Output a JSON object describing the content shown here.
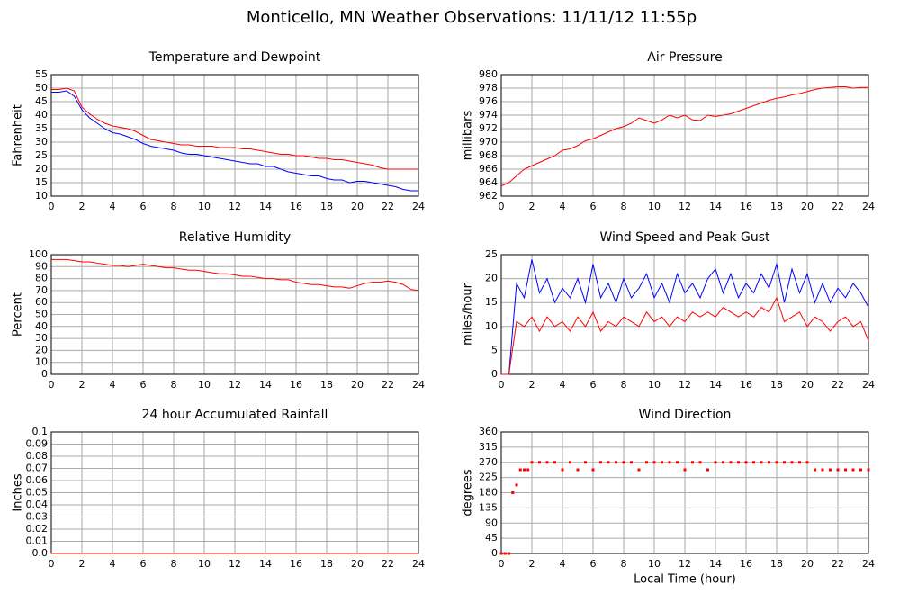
{
  "title": "Monticello, MN Weather Observations: 11/11/12 11:55p",
  "chart_data": [
    {
      "type": "line",
      "title": "Temperature and Dewpoint",
      "ylabel": "Fahrenheit",
      "grid": true,
      "x": [
        0,
        0.5,
        1,
        1.5,
        2,
        2.5,
        3,
        3.5,
        4,
        4.5,
        5,
        5.5,
        6,
        6.5,
        7,
        7.5,
        8,
        8.5,
        9,
        9.5,
        10,
        10.5,
        11,
        11.5,
        12,
        12.5,
        13,
        13.5,
        14,
        14.5,
        15,
        15.5,
        16,
        16.5,
        17,
        17.5,
        18,
        18.5,
        19,
        19.5,
        20,
        20.5,
        21,
        21.5,
        22,
        22.5,
        23,
        23.5,
        24
      ],
      "series": [
        {
          "color": "#0000ff",
          "values": [
            48.5,
            48.5,
            49,
            47,
            42,
            39,
            37,
            35,
            33.5,
            33,
            32,
            31,
            29.5,
            28.5,
            28,
            27.5,
            27,
            26,
            25.5,
            25.5,
            25,
            24.5,
            24,
            23.5,
            23,
            22.5,
            22,
            22,
            21,
            21,
            20,
            19,
            18.5,
            18,
            17.5,
            17.5,
            16.5,
            16,
            16,
            15,
            15.5,
            15.5,
            15,
            14.5,
            14,
            13.5,
            12.5,
            12,
            12
          ]
        },
        {
          "color": "#ff0000",
          "values": [
            49.5,
            49.5,
            50,
            49,
            43,
            40.5,
            38.5,
            37,
            36,
            35.5,
            35,
            34,
            32.5,
            31,
            30.5,
            30,
            29.5,
            29,
            29,
            28.5,
            28.5,
            28.5,
            28,
            28,
            28,
            27.5,
            27.5,
            27,
            26.5,
            26,
            25.5,
            25.5,
            25,
            25,
            24.5,
            24,
            24,
            23.5,
            23.5,
            23,
            22.5,
            22,
            21.5,
            20.5,
            20,
            20,
            20,
            20,
            20
          ]
        }
      ],
      "xlim": [
        0,
        24
      ],
      "xticks": [
        0,
        2,
        4,
        6,
        8,
        10,
        12,
        14,
        16,
        18,
        20,
        22,
        24
      ],
      "ylim": [
        10,
        55
      ],
      "yticks": [
        10,
        15,
        20,
        25,
        30,
        35,
        40,
        45,
        50,
        55
      ]
    },
    {
      "type": "line",
      "title": "Air Pressure",
      "ylabel": "millibars",
      "grid": true,
      "x": [
        0,
        0.5,
        1,
        1.5,
        2,
        2.5,
        3,
        3.5,
        4,
        4.5,
        5,
        5.5,
        6,
        6.5,
        7,
        7.5,
        8,
        8.5,
        9,
        9.5,
        10,
        10.5,
        11,
        11.5,
        12,
        12.5,
        13,
        13.5,
        14,
        14.5,
        15,
        15.5,
        16,
        16.5,
        17,
        17.5,
        18,
        18.5,
        19,
        19.5,
        20,
        20.5,
        21,
        21.5,
        22,
        22.5,
        23,
        23.5,
        24
      ],
      "series": [
        {
          "color": "#ff0000",
          "values": [
            963.5,
            964,
            965,
            966,
            966.5,
            967,
            967.5,
            968,
            968.8,
            969,
            969.5,
            970.2,
            970.5,
            971,
            971.5,
            972,
            972.3,
            972.8,
            973.6,
            973.2,
            972.8,
            973.3,
            974,
            973.6,
            974,
            973.3,
            973.2,
            974,
            973.8,
            974,
            974.2,
            974.6,
            975,
            975.4,
            975.8,
            976.2,
            976.5,
            976.7,
            977,
            977.2,
            977.5,
            977.8,
            978,
            978.1,
            978.2,
            978.2,
            978,
            978.1,
            978.1
          ]
        }
      ],
      "xlim": [
        0,
        24
      ],
      "xticks": [
        0,
        2,
        4,
        6,
        8,
        10,
        12,
        14,
        16,
        18,
        20,
        22,
        24
      ],
      "ylim": [
        962,
        980
      ],
      "yticks": [
        962,
        964,
        966,
        968,
        970,
        972,
        974,
        976,
        978,
        980
      ]
    },
    {
      "type": "line",
      "title": "Relative Humidity",
      "ylabel": "Percent",
      "grid": true,
      "x": [
        0,
        0.5,
        1,
        1.5,
        2,
        2.5,
        3,
        3.5,
        4,
        4.5,
        5,
        5.5,
        6,
        6.5,
        7,
        7.5,
        8,
        8.5,
        9,
        9.5,
        10,
        10.5,
        11,
        11.5,
        12,
        12.5,
        13,
        13.5,
        14,
        14.5,
        15,
        15.5,
        16,
        16.5,
        17,
        17.5,
        18,
        18.5,
        19,
        19.5,
        20,
        20.5,
        21,
        21.5,
        22,
        22.5,
        23,
        23.5,
        24
      ],
      "series": [
        {
          "color": "#ff0000",
          "values": [
            96,
            96,
            96,
            95,
            94,
            94,
            93,
            92,
            91,
            91,
            90,
            91,
            92,
            91,
            90,
            89,
            89,
            88,
            87,
            87,
            86,
            85,
            84,
            84,
            83,
            82,
            82,
            81,
            80,
            80,
            79,
            79,
            77,
            76,
            75,
            75,
            74,
            73,
            73,
            72,
            74,
            76,
            77,
            77,
            78,
            77,
            75,
            71,
            70
          ]
        }
      ],
      "xlim": [
        0,
        24
      ],
      "xticks": [
        0,
        2,
        4,
        6,
        8,
        10,
        12,
        14,
        16,
        18,
        20,
        22,
        24
      ],
      "ylim": [
        0,
        100
      ],
      "yticks": [
        0,
        10,
        20,
        30,
        40,
        50,
        60,
        70,
        80,
        90,
        100
      ]
    },
    {
      "type": "line",
      "title": "Wind Speed and Peak Gust",
      "ylabel": "miles/hour",
      "grid": true,
      "x": [
        0,
        0.5,
        1,
        1.5,
        2,
        2.5,
        3,
        3.5,
        4,
        4.5,
        5,
        5.5,
        6,
        6.5,
        7,
        7.5,
        8,
        8.5,
        9,
        9.5,
        10,
        10.5,
        11,
        11.5,
        12,
        12.5,
        13,
        13.5,
        14,
        14.5,
        15,
        15.5,
        16,
        16.5,
        17,
        17.5,
        18,
        18.5,
        19,
        19.5,
        20,
        20.5,
        21,
        21.5,
        22,
        22.5,
        23,
        23.5,
        24
      ],
      "series": [
        {
          "color": "#0000ff",
          "values": [
            0,
            0,
            19,
            16,
            24,
            17,
            20,
            15,
            18,
            16,
            20,
            15,
            23,
            16,
            19,
            15,
            20,
            16,
            18,
            21,
            16,
            19,
            15,
            21,
            17,
            19,
            16,
            20,
            22,
            17,
            21,
            16,
            19,
            17,
            21,
            18,
            23,
            15,
            22,
            17,
            21,
            15,
            19,
            15,
            18,
            16,
            19,
            17,
            14
          ]
        },
        {
          "color": "#ff0000",
          "values": [
            0,
            0,
            11,
            10,
            12,
            9,
            12,
            10,
            11,
            9,
            12,
            10,
            13,
            9,
            11,
            10,
            12,
            11,
            10,
            13,
            11,
            12,
            10,
            12,
            11,
            13,
            12,
            13,
            12,
            14,
            13,
            12,
            13,
            12,
            14,
            13,
            16,
            11,
            12,
            13,
            10,
            12,
            11,
            9,
            11,
            12,
            10,
            11,
            7
          ]
        }
      ],
      "xlim": [
        0,
        24
      ],
      "xticks": [
        0,
        2,
        4,
        6,
        8,
        10,
        12,
        14,
        16,
        18,
        20,
        22,
        24
      ],
      "ylim": [
        0,
        25
      ],
      "yticks": [
        0,
        5,
        10,
        15,
        20,
        25
      ]
    },
    {
      "type": "line",
      "title": "24 hour Accumulated Rainfall",
      "ylabel": "Inches",
      "grid": true,
      "x": [
        0,
        24
      ],
      "series": [
        {
          "color": "#ff0000",
          "values": [
            0,
            0
          ]
        }
      ],
      "xlim": [
        0,
        24
      ],
      "xticks": [
        0,
        2,
        4,
        6,
        8,
        10,
        12,
        14,
        16,
        18,
        20,
        22,
        24
      ],
      "ylim": [
        0,
        0.1
      ],
      "yticks": [
        {
          "value": 0,
          "label": "0.0"
        },
        0.01,
        0.02,
        0.03,
        0.04,
        0.05,
        0.06,
        0.07,
        0.08,
        0.09,
        0.1
      ]
    },
    {
      "type": "scatter",
      "title": "Wind Direction",
      "ylabel": "degrees",
      "xlabel": "Local Time (hour)",
      "grid": true,
      "x": [
        0,
        0.25,
        0.5,
        0.75,
        1,
        1.25,
        1.5,
        1.75,
        2,
        2.5,
        3,
        3.5,
        4,
        4.5,
        5,
        5.5,
        6,
        6.5,
        7,
        7.5,
        8,
        8.5,
        9,
        9.5,
        10,
        10.5,
        11,
        11.5,
        12,
        12.5,
        13,
        13.5,
        14,
        14.5,
        15,
        15.5,
        16,
        16.5,
        17,
        17.5,
        18,
        18.5,
        19,
        19.5,
        20,
        20.5,
        21,
        21.5,
        22,
        22.5,
        23,
        23.5,
        24
      ],
      "series": [
        {
          "color": "#ff0000",
          "values": [
            0,
            0,
            0,
            180,
            203,
            248,
            248,
            248,
            270,
            270,
            270,
            270,
            248,
            270,
            248,
            270,
            248,
            270,
            270,
            270,
            270,
            270,
            248,
            270,
            270,
            270,
            270,
            270,
            248,
            270,
            270,
            248,
            270,
            270,
            270,
            270,
            270,
            270,
            270,
            270,
            270,
            270,
            270,
            270,
            270,
            248,
            248,
            248,
            248,
            248,
            248,
            248,
            248
          ]
        }
      ],
      "xlim": [
        0,
        24
      ],
      "xticks": [
        0,
        2,
        4,
        6,
        8,
        10,
        12,
        14,
        16,
        18,
        20,
        22,
        24
      ],
      "ylim": [
        0,
        360
      ],
      "yticks": [
        0,
        45,
        90,
        135,
        180,
        225,
        270,
        315,
        360
      ]
    }
  ]
}
